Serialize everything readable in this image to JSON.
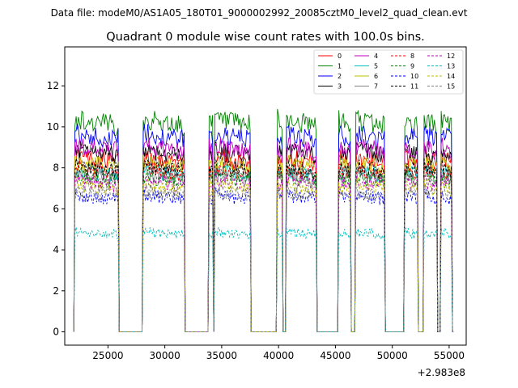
{
  "chart_data": {
    "type": "line",
    "suptitle": "Data file: modeM0/AS1A05_180T01_9000002992_20085cztM0_level2_quad_clean.evt",
    "title": "Quadrant 0 module wise count rates with 100.0s bins.",
    "xlabel": "",
    "ylabel": "",
    "x_offset_label": "+2.983e8",
    "xlim": [
      21200,
      56500
    ],
    "ylim": [
      -0.65,
      13.9
    ],
    "x_ticks": [
      25000,
      30000,
      35000,
      40000,
      45000,
      50000,
      55000
    ],
    "x_tick_labels": [
      "25000",
      "30000",
      "35000",
      "40000",
      "45000",
      "50000",
      "55000"
    ],
    "y_ticks": [
      0,
      2,
      4,
      6,
      8,
      10,
      12
    ],
    "y_tick_labels": [
      "0",
      "2",
      "4",
      "6",
      "8",
      "10",
      "12"
    ],
    "legend_position": "top-right",
    "segments": [
      [
        22100,
        25900
      ],
      [
        28100,
        31700
      ],
      [
        33850,
        34250
      ],
      [
        34350,
        37500
      ],
      [
        39850,
        40350
      ],
      [
        40650,
        43300
      ],
      [
        45300,
        46300
      ],
      [
        46800,
        49300
      ],
      [
        51100,
        52200
      ],
      [
        52800,
        53900
      ],
      [
        54300,
        55200
      ]
    ],
    "segment_shape": [
      1.0,
      0.95,
      0.9,
      0.85,
      0.82,
      0.8,
      0.78,
      0.75
    ],
    "series": [
      {
        "name": "0",
        "color": "#ff0000",
        "dashed": false,
        "level": 8.6
      },
      {
        "name": "1",
        "color": "#008000",
        "dashed": false,
        "level": 10.4
      },
      {
        "name": "2",
        "color": "#0000ff",
        "dashed": false,
        "level": 9.7
      },
      {
        "name": "3",
        "color": "#000000",
        "dashed": false,
        "level": 8.9
      },
      {
        "name": "4",
        "color": "#bf00bf",
        "dashed": false,
        "level": 9.1
      },
      {
        "name": "5",
        "color": "#00bfbf",
        "dashed": false,
        "level": 7.9
      },
      {
        "name": "6",
        "color": "#bfbf00",
        "dashed": false,
        "level": 8.3
      },
      {
        "name": "7",
        "color": "#808080",
        "dashed": false,
        "level": 7.7
      },
      {
        "name": "8",
        "color": "#ff0000",
        "dashed": true,
        "level": 8.0
      },
      {
        "name": "9",
        "color": "#008000",
        "dashed": true,
        "level": 7.6
      },
      {
        "name": "10",
        "color": "#0000ff",
        "dashed": true,
        "level": 6.7
      },
      {
        "name": "11",
        "color": "#000000",
        "dashed": true,
        "level": 8.1
      },
      {
        "name": "12",
        "color": "#bf00bf",
        "dashed": true,
        "level": 7.4
      },
      {
        "name": "13",
        "color": "#00bfbf",
        "dashed": true,
        "level": 4.9
      },
      {
        "name": "14",
        "color": "#bfbf00",
        "dashed": true,
        "level": 7.2
      },
      {
        "name": "15",
        "color": "#808080",
        "dashed": true,
        "level": 6.9
      }
    ]
  }
}
